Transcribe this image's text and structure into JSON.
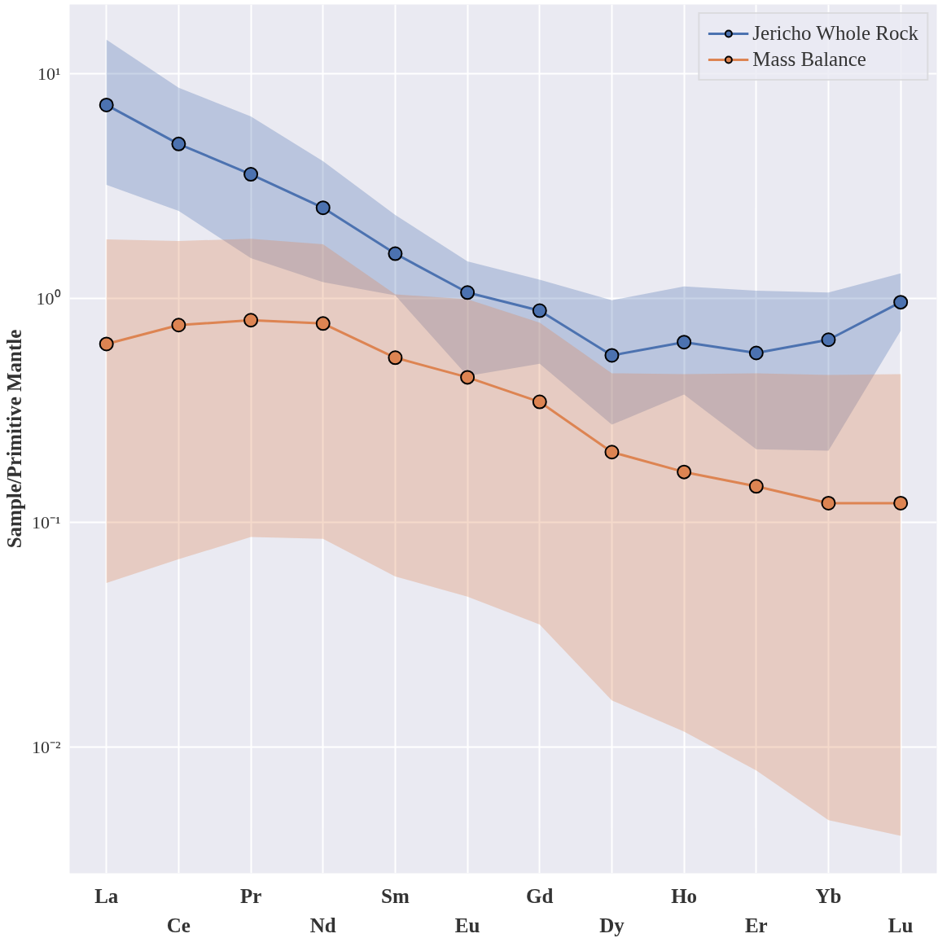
{
  "chart_data": {
    "type": "line",
    "ylabel": "Sample/Primitive Mantle",
    "categories": [
      "La",
      "Ce",
      "Pr",
      "Nd",
      "Sm",
      "Eu",
      "Gd",
      "Dy",
      "Ho",
      "Er",
      "Yb",
      "Lu"
    ],
    "log": "y",
    "ylim": [
      0.00273,
      20.4
    ],
    "yticks": [
      {
        "value": 0.01,
        "label": "10⁻²"
      },
      {
        "value": 0.1,
        "label": "10⁻¹"
      },
      {
        "value": 1,
        "label": "10⁰"
      },
      {
        "value": 10,
        "label": "10¹"
      }
    ],
    "grid": true,
    "legend": "top right",
    "marker": "circle",
    "line_style": "solid",
    "series": [
      {
        "name": "Jericho Whole Rock",
        "color": "#4c72b0",
        "values": [
          7.27,
          4.87,
          3.57,
          2.53,
          1.58,
          1.06,
          0.88,
          0.556,
          0.637,
          0.57,
          0.653,
          0.96
        ],
        "lower": [
          3.2,
          2.45,
          1.51,
          1.18,
          1.03,
          0.45,
          0.51,
          0.273,
          0.372,
          0.212,
          0.209,
          0.716
        ],
        "upper": [
          14.2,
          8.67,
          6.47,
          4.08,
          2.35,
          1.46,
          1.21,
          0.98,
          1.13,
          1.08,
          1.06,
          1.29
        ]
      },
      {
        "name": "Mass Balance",
        "color": "#dd8452",
        "values": [
          0.625,
          0.759,
          0.798,
          0.771,
          0.543,
          0.444,
          0.345,
          0.206,
          0.168,
          0.145,
          0.122,
          0.122
        ],
        "lower": [
          0.0538,
          0.0686,
          0.0861,
          0.0846,
          0.0575,
          0.0467,
          0.0351,
          0.0161,
          0.0117,
          0.00785,
          0.00471,
          0.00401
        ],
        "upper": [
          1.83,
          1.8,
          1.84,
          1.74,
          1.04,
          0.99,
          0.778,
          0.463,
          0.459,
          0.463,
          0.455,
          0.459
        ]
      }
    ]
  }
}
